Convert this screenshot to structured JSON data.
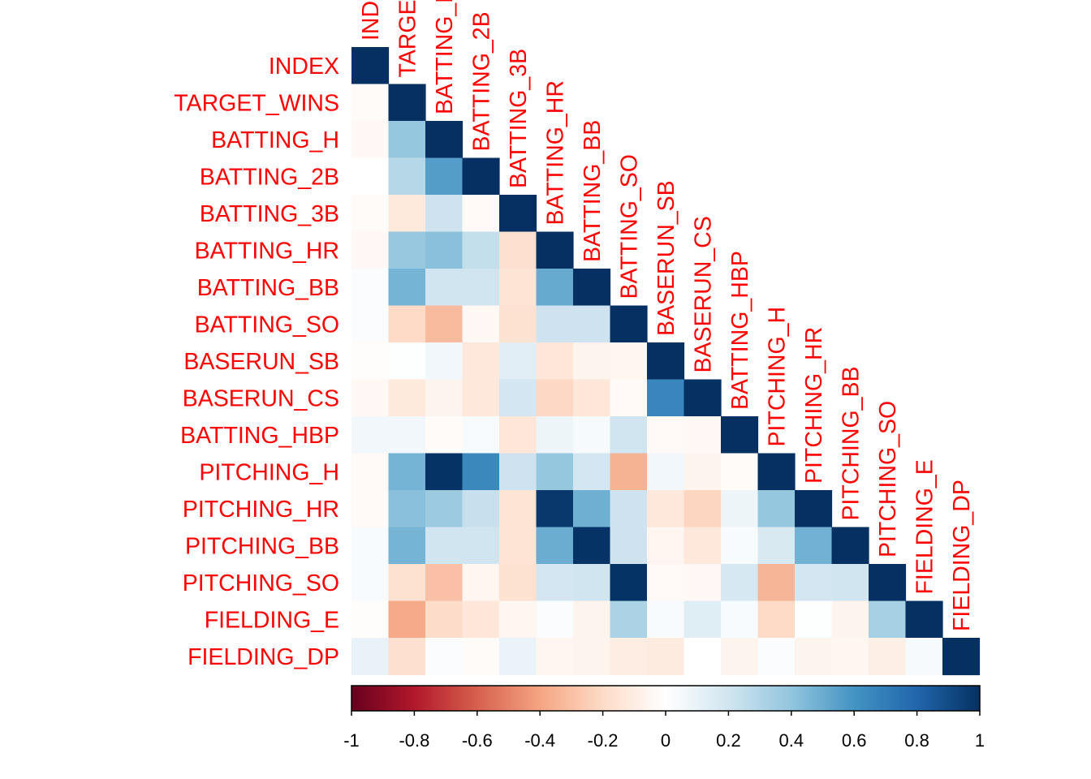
{
  "chart_data": {
    "type": "heatmap",
    "title": "",
    "variables": [
      "INDEX",
      "TARGET_WINS",
      "BATTING_H",
      "BATTING_2B",
      "BATTING_3B",
      "BATTING_HR",
      "BATTING_BB",
      "BATTING_SO",
      "BASERUN_SB",
      "BASERUN_CS",
      "BATTING_HBP",
      "PITCHING_H",
      "PITCHING_HR",
      "PITCHING_BB",
      "PITCHING_SO",
      "FIELDING_E",
      "FIELDING_DP"
    ],
    "matrix_shape": "lower-triangular",
    "label_color": "#ff0000",
    "correlations": [
      [
        1
      ],
      [
        -0.02,
        1
      ],
      [
        -0.04,
        0.39,
        1
      ],
      [
        0.0,
        0.29,
        0.56,
        1
      ],
      [
        -0.02,
        -0.12,
        0.21,
        -0.03,
        1
      ],
      [
        -0.04,
        0.38,
        0.42,
        0.24,
        -0.17,
        1
      ],
      [
        0.02,
        0.47,
        0.2,
        0.2,
        -0.15,
        0.51,
        1
      ],
      [
        0.02,
        -0.2,
        -0.32,
        -0.04,
        -0.16,
        0.21,
        0.21,
        1
      ],
      [
        -0.01,
        0.01,
        0.06,
        -0.13,
        0.13,
        -0.14,
        -0.06,
        -0.05,
        1
      ],
      [
        -0.04,
        -0.12,
        -0.06,
        -0.13,
        0.19,
        -0.21,
        -0.14,
        -0.03,
        0.66,
        1
      ],
      [
        0.06,
        0.06,
        -0.02,
        0.03,
        -0.14,
        0.08,
        0.04,
        0.2,
        -0.03,
        -0.04,
        1
      ],
      [
        -0.03,
        0.47,
        0.99,
        0.65,
        0.21,
        0.39,
        0.19,
        -0.35,
        0.06,
        -0.06,
        -0.02,
        1
      ],
      [
        -0.03,
        0.42,
        0.37,
        0.23,
        -0.15,
        0.97,
        0.49,
        0.21,
        -0.13,
        -0.22,
        0.08,
        0.39,
        1
      ],
      [
        0.03,
        0.47,
        0.2,
        0.2,
        -0.15,
        0.5,
        0.99,
        0.21,
        -0.05,
        -0.13,
        0.03,
        0.17,
        0.48,
        1
      ],
      [
        0.03,
        -0.16,
        -0.3,
        -0.05,
        -0.16,
        0.19,
        0.2,
        0.99,
        -0.03,
        -0.04,
        0.18,
        -0.34,
        0.19,
        0.2,
        1
      ],
      [
        -0.01,
        -0.38,
        -0.19,
        -0.14,
        -0.05,
        0.02,
        -0.06,
        0.32,
        0.03,
        0.14,
        0.03,
        -0.2,
        0.01,
        -0.06,
        0.33,
        1
      ],
      [
        0.1,
        -0.17,
        0.02,
        -0.02,
        0.09,
        -0.05,
        -0.06,
        -0.1,
        -0.11,
        0.0,
        -0.06,
        0.02,
        -0.06,
        -0.05,
        -0.09,
        0.04,
        1
      ]
    ],
    "colorbar": {
      "min": -1,
      "max": 1,
      "ticks": [
        "-1",
        "-0.8",
        "-0.6",
        "-0.4",
        "-0.2",
        "0",
        "0.2",
        "0.4",
        "0.6",
        "0.8",
        "1"
      ],
      "colors": [
        "#67001f",
        "#b2182b",
        "#d6604d",
        "#f4a582",
        "#fddbc7",
        "#ffffff",
        "#d1e5f0",
        "#92c5de",
        "#4393c3",
        "#2166ac",
        "#053061"
      ]
    }
  }
}
